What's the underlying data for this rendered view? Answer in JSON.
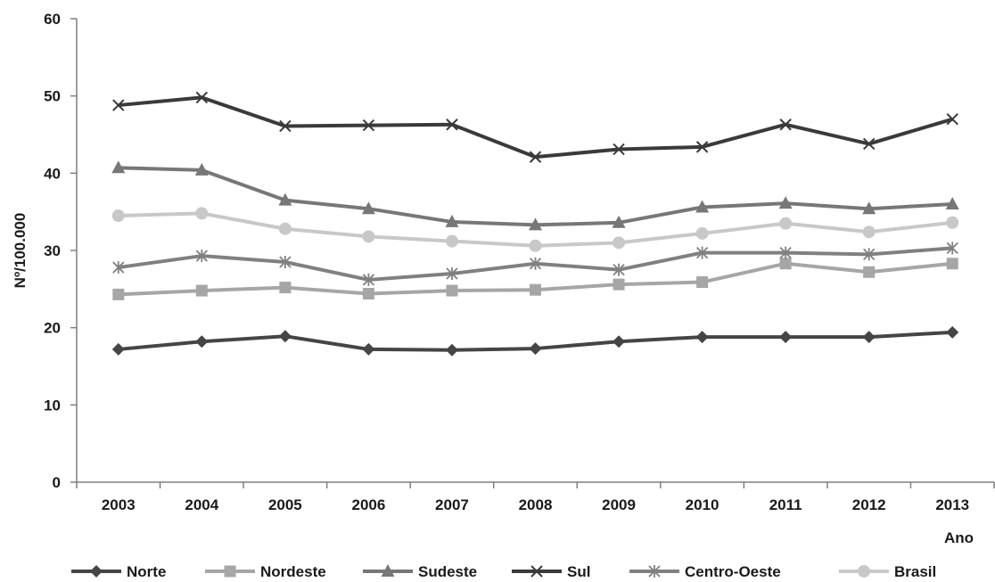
{
  "chart_data": {
    "type": "line",
    "xlabel": "Ano",
    "ylabel": "Nº/100.000",
    "ylim": [
      0,
      60
    ],
    "yticks": [
      0,
      10,
      20,
      30,
      40,
      50,
      60
    ],
    "grid": false,
    "legend_position": "bottom",
    "categories": [
      "2003",
      "2004",
      "2005",
      "2006",
      "2007",
      "2008",
      "2009",
      "2010",
      "2011",
      "2012",
      "2013"
    ],
    "series": [
      {
        "name": "Norte",
        "color": "#454545",
        "marker": "diamond",
        "values": [
          17.2,
          18.2,
          18.9,
          17.2,
          17.1,
          17.3,
          18.2,
          18.8,
          18.8,
          18.8,
          19.4
        ]
      },
      {
        "name": "Nordeste",
        "color": "#a6a6a6",
        "marker": "square",
        "values": [
          24.3,
          24.8,
          25.2,
          24.4,
          24.8,
          24.9,
          25.6,
          25.9,
          28.3,
          27.2,
          28.3
        ]
      },
      {
        "name": "Sudeste",
        "color": "#777777",
        "marker": "triangle",
        "values": [
          40.7,
          40.4,
          36.5,
          35.4,
          33.7,
          33.3,
          33.6,
          35.6,
          36.1,
          35.4,
          36.0
        ]
      },
      {
        "name": "Sul",
        "color": "#3a3a3a",
        "marker": "x",
        "values": [
          48.8,
          49.8,
          46.1,
          46.2,
          46.3,
          42.1,
          43.1,
          43.4,
          46.3,
          43.8,
          47.0
        ]
      },
      {
        "name": "Centro-Oeste",
        "color": "#808080",
        "marker": "star",
        "values": [
          27.8,
          29.3,
          28.5,
          26.2,
          27.0,
          28.3,
          27.5,
          29.7,
          29.7,
          29.5,
          30.3
        ]
      },
      {
        "name": "Brasil",
        "color": "#c8c8c8",
        "marker": "circle",
        "values": [
          34.5,
          34.8,
          32.8,
          31.8,
          31.2,
          30.6,
          31.0,
          32.2,
          33.5,
          32.4,
          33.6
        ]
      }
    ]
  }
}
